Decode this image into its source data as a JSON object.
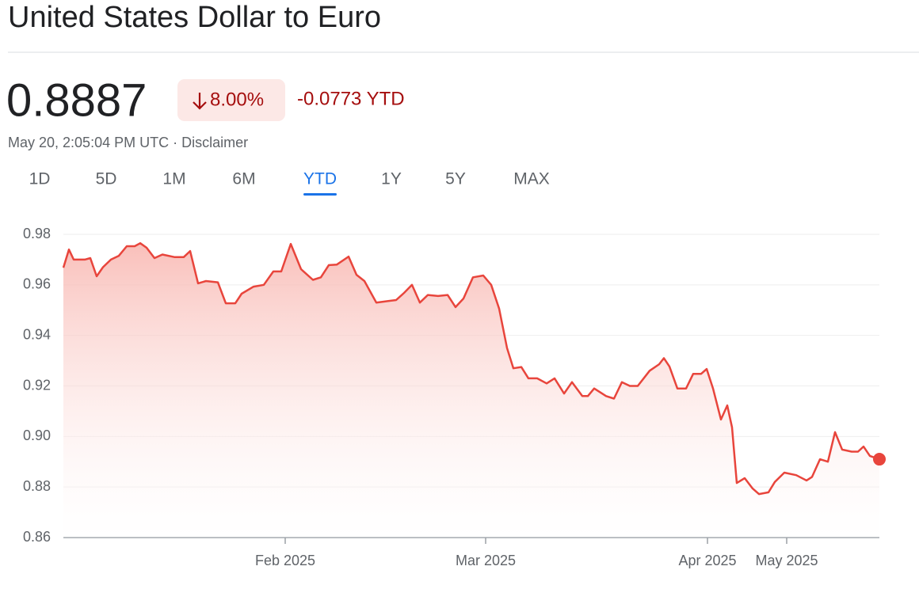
{
  "header": {
    "title": "United States Dollar to Euro",
    "price": "0.8887",
    "change_percent": "8.00%",
    "change_ytd": "-0.0773 YTD",
    "timestamp": "May 20, 2:05:04 PM UTC · Disclaimer"
  },
  "range_tabs": [
    "1D",
    "5D",
    "1M",
    "6M",
    "YTD",
    "1Y",
    "5Y",
    "MAX"
  ],
  "selected_tab": "YTD",
  "chart_data": {
    "type": "line",
    "color": "#e8453c",
    "grid": true,
    "x": [
      0,
      7,
      13,
      20,
      27,
      34,
      42,
      50,
      60,
      70,
      80,
      90,
      97,
      105,
      115,
      125,
      140,
      152,
      160,
      170,
      180,
      195,
      205,
      217,
      225,
      240,
      253,
      265,
      275,
      287,
      300,
      315,
      325,
      335,
      345,
      360,
      370,
      380,
      395,
      410,
      420,
      430,
      440,
      450,
      460,
      473,
      485,
      495,
      505,
      517,
      530,
      540,
      550,
      560,
      568,
      578,
      587,
      598,
      610,
      620,
      632,
      642,
      655,
      662,
      670,
      685,
      695,
      705,
      715,
      725,
      740,
      752,
      758,
      765,
      775,
      786,
      795,
      805,
      812,
      820,
      830,
      838,
      844,
      850,
      860,
      870,
      878,
      890,
      898,
      910,
      925,
      938,
      945,
      955,
      965,
      974,
      983,
      995,
      1003,
      1010,
      1018,
      1030
    ],
    "values": [
      0.9668,
      0.974,
      0.97,
      0.97,
      0.97,
      0.9706,
      0.9634,
      0.967,
      0.97,
      0.9715,
      0.9753,
      0.9753,
      0.9765,
      0.9747,
      0.9706,
      0.972,
      0.971,
      0.971,
      0.9734,
      0.9606,
      0.9615,
      0.961,
      0.9527,
      0.9527,
      0.9565,
      0.9593,
      0.96,
      0.9653,
      0.9653,
      0.9762,
      0.9662,
      0.962,
      0.963,
      0.9678,
      0.968,
      0.9712,
      0.964,
      0.9615,
      0.953,
      0.9536,
      0.954,
      0.9568,
      0.96,
      0.953,
      0.956,
      0.9556,
      0.956,
      0.9512,
      0.9546,
      0.963,
      0.9637,
      0.96,
      0.9506,
      0.935,
      0.927,
      0.9275,
      0.923,
      0.923,
      0.921,
      0.923,
      0.917,
      0.9215,
      0.916,
      0.916,
      0.919,
      0.916,
      0.915,
      0.9215,
      0.92,
      0.92,
      0.926,
      0.9286,
      0.931,
      0.9277,
      0.919,
      0.919,
      0.9248,
      0.9248,
      0.9267,
      0.919,
      0.9067,
      0.9123,
      0.9036,
      0.8816,
      0.8835,
      0.8794,
      0.8772,
      0.8779,
      0.882,
      0.8857,
      0.8847,
      0.8826,
      0.884,
      0.891,
      0.89,
      0.9017,
      0.8948,
      0.894,
      0.894,
      0.896,
      0.8923,
      0.891
    ],
    "xlim": [
      0,
      1030
    ],
    "xticks": [
      {
        "value": 280,
        "label": "Feb 2025"
      },
      {
        "value": 533,
        "label": "Mar 2025"
      },
      {
        "value": 813,
        "label": "Apr 2025"
      },
      {
        "value": 913,
        "label": "May 2025"
      }
    ],
    "ylim": [
      0.86,
      0.98
    ],
    "yticks": [
      0.86,
      0.88,
      {
        "value": 0.9,
        "label": "0.90"
      },
      0.92,
      0.94,
      0.96,
      0.98
    ]
  }
}
